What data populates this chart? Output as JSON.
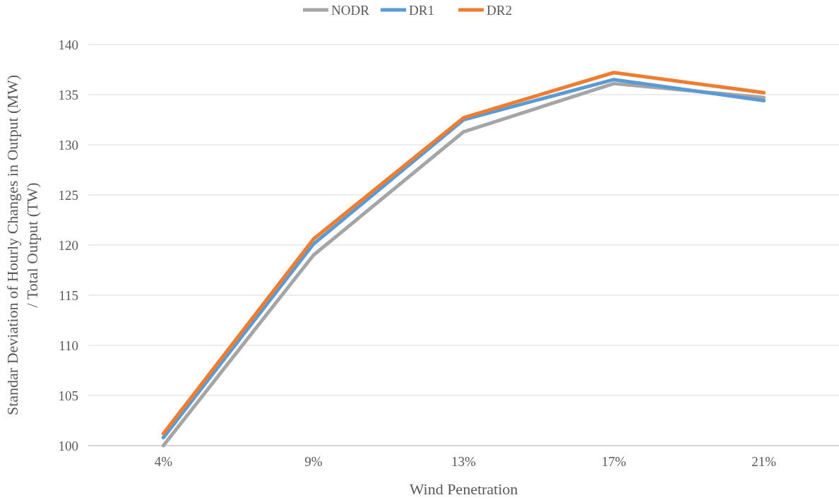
{
  "chart_data": {
    "type": "line",
    "xlabel": "Wind Penetration",
    "ylabel": "Standar Deviation of Hourly Changes in Output (MW)\n/ Total Output (TW)",
    "categories": [
      "4%",
      "9%",
      "13%",
      "17%",
      "21%"
    ],
    "series": [
      {
        "name": "NODR",
        "color": "#a5a5a5",
        "values": [
          100.0,
          119.0,
          131.3,
          136.1,
          134.7
        ]
      },
      {
        "name": "DR1",
        "color": "#5b9bd5",
        "values": [
          100.8,
          120.1,
          132.5,
          136.5,
          134.4
        ]
      },
      {
        "name": "DR2",
        "color": "#ed7d31",
        "values": [
          101.2,
          120.6,
          132.7,
          137.2,
          135.2
        ]
      }
    ],
    "ylim": [
      100,
      140
    ],
    "yticks": [
      100,
      105,
      110,
      115,
      120,
      125,
      130,
      135,
      140
    ],
    "grid": "y",
    "legend": "top",
    "marker": "none",
    "line_style": "solid"
  }
}
